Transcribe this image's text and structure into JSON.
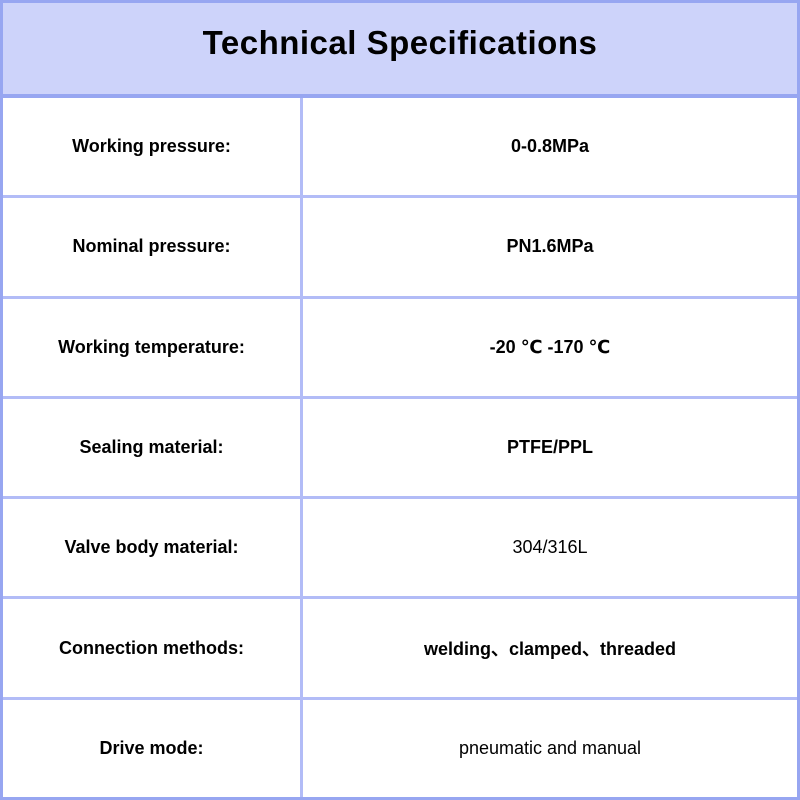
{
  "header": {
    "title": "Technical Specifications"
  },
  "colors": {
    "header_bg": "#cdd3fa",
    "border_outer": "#97a6f1",
    "border_inner": "#b2bcf7",
    "cell_bg": "#ffffff",
    "text": "#000000"
  },
  "table": {
    "rows": [
      {
        "label": "Working pressure:",
        "value": "0-0.8MPa",
        "value_bold": true
      },
      {
        "label": "Nominal pressure:",
        "value": "PN1.6MPa",
        "value_bold": true
      },
      {
        "label": "Working temperature:",
        "value": "-20 ℃ -170 ℃",
        "value_bold": true
      },
      {
        "label": "Sealing material:",
        "value": "PTFE/PPL",
        "value_bold": true
      },
      {
        "label": "Valve body material:",
        "value": "304/316L",
        "value_bold": false
      },
      {
        "label": "Connection methods:",
        "value": "welding、clamped、threaded",
        "value_bold": true
      },
      {
        "label": "Drive mode:",
        "value": "pneumatic and manual",
        "value_bold": false
      }
    ]
  }
}
